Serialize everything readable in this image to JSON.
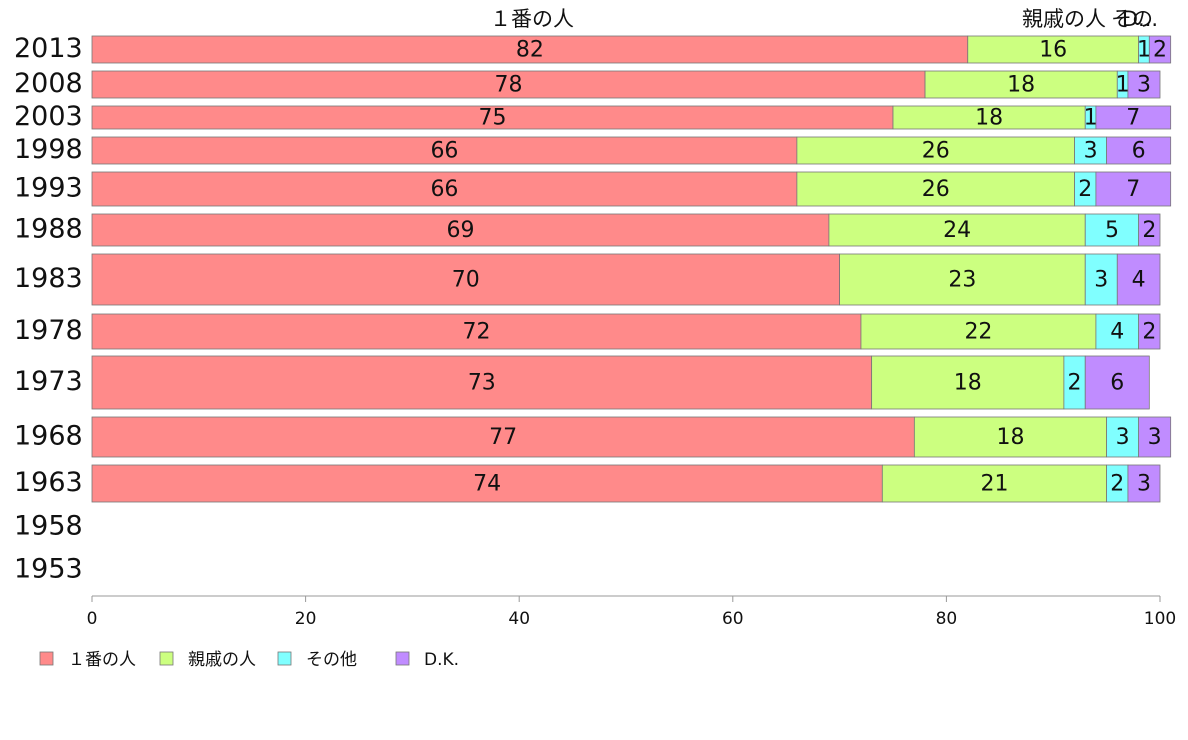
{
  "chart_data": {
    "type": "bar",
    "orientation": "horizontal",
    "stacked": true,
    "categories": [
      "2013",
      "2008",
      "2003",
      "1998",
      "1993",
      "1988",
      "1983",
      "1978",
      "1973",
      "1968",
      "1963",
      "1958",
      "1953"
    ],
    "series": [
      {
        "name": "１番の人",
        "color": "#ff8a8a",
        "values": [
          82,
          78,
          75,
          66,
          66,
          69,
          70,
          72,
          73,
          77,
          74,
          null,
          null
        ]
      },
      {
        "name": "親戚の人",
        "color": "#ccff80",
        "values": [
          16,
          18,
          18,
          26,
          26,
          24,
          23,
          22,
          18,
          18,
          21,
          null,
          null
        ]
      },
      {
        "name": "その他",
        "color": "#80ffff",
        "values": [
          1,
          1,
          1,
          3,
          2,
          5,
          3,
          4,
          2,
          3,
          2,
          null,
          null
        ]
      },
      {
        "name": "D.K.",
        "color": "#c08cff",
        "values": [
          2,
          3,
          7,
          6,
          7,
          2,
          4,
          2,
          6,
          3,
          3,
          null,
          null
        ]
      }
    ],
    "top_labels": [
      "１番の人",
      "親戚の人",
      "その",
      "D..."
    ],
    "xlim": [
      0,
      100
    ],
    "xticks": [
      "0",
      "20",
      "40",
      "60",
      "80",
      "100"
    ],
    "legend_position": "bottom-left",
    "grid": false
  }
}
